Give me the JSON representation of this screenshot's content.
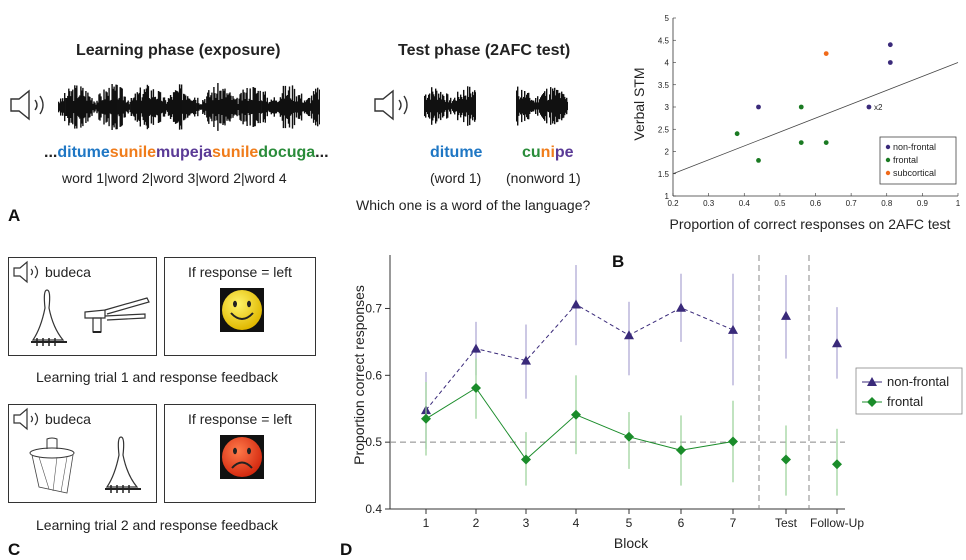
{
  "panelA": {
    "letter": "A",
    "learning_title": "Learning phase (exposure)",
    "test_title": "Test phase (2AFC test)",
    "stream": {
      "prefix": "...",
      "suffix": "...",
      "segments": [
        {
          "text": "ditume",
          "color": "#1f77c4"
        },
        {
          "text": "sunile",
          "color": "#f07c1a"
        },
        {
          "text": "mupeja",
          "color": "#5a3a96"
        },
        {
          "text": "sunile",
          "color": "#f07c1a"
        },
        {
          "text": "docuga",
          "color": "#2a8c3a"
        }
      ]
    },
    "words_line": "word 1|word 2|word 3|word 2|word 4",
    "test_word": {
      "text": "ditume",
      "color": "#1f77c4",
      "label": "(word 1)"
    },
    "test_nonword": {
      "label": "(nonword 1)",
      "segments": [
        {
          "text": "cu",
          "color": "#2a8c3a"
        },
        {
          "text": "ni",
          "color": "#f07c1a"
        },
        {
          "text": "pe",
          "color": "#5a3a96"
        }
      ]
    },
    "question": "Which one is a word of the language?"
  },
  "panelB": {
    "letter": "B",
    "ylabel": "Verbal STM",
    "xlabel": "Proportion of correct responses on 2AFC test",
    "annotation": "x2",
    "legend": [
      {
        "label": "non-frontal",
        "color": "#3a2a7a"
      },
      {
        "label": "frontal",
        "color": "#1a7a22"
      },
      {
        "label": "subcortical",
        "color": "#f06a1a"
      }
    ]
  },
  "panelC": {
    "letter": "C",
    "word": "budeca",
    "feedback_label": "If response = left",
    "trial1_caption": "Learning trial 1 and response feedback",
    "trial2_caption": "Learning trial 2 and response feedback"
  },
  "panelD": {
    "letter": "D",
    "ylabel": "Proportion correct responses",
    "xlabel": "Block",
    "legend": [
      {
        "label": "non-frontal",
        "color": "#3a2a7a"
      },
      {
        "label": "frontal",
        "color": "#1a8c2a"
      }
    ]
  },
  "chart_data": [
    {
      "type": "scatter",
      "ylabel": "Verbal STM",
      "xlabel": "Proportion of correct responses on 2AFC test",
      "xlim": [
        0.2,
        1
      ],
      "ylim": [
        1,
        5
      ],
      "xticks": [
        "0.2",
        "0.3",
        "0.4",
        "0.5",
        "0.6",
        "0.7",
        "0.8",
        "0.9",
        "1"
      ],
      "yticks": [
        "1",
        "1.5",
        "2",
        "2.5",
        "3",
        "3.5",
        "4",
        "4.5",
        "5"
      ],
      "series": [
        {
          "name": "non-frontal",
          "color": "#3a2a7a",
          "points": [
            [
              0.44,
              3.0
            ],
            [
              0.75,
              3.0
            ],
            [
              0.81,
              4.4
            ],
            [
              0.81,
              4.0
            ]
          ]
        },
        {
          "name": "frontal",
          "color": "#1a7a22",
          "points": [
            [
              0.38,
              2.4
            ],
            [
              0.44,
              1.8
            ],
            [
              0.56,
              3.0
            ],
            [
              0.56,
              2.2
            ],
            [
              0.63,
              2.2
            ]
          ]
        },
        {
          "name": "subcortical",
          "color": "#f06a1a",
          "points": [
            [
              0.63,
              4.2
            ]
          ]
        }
      ],
      "regression_line": [
        [
          0.2,
          1.5
        ],
        [
          1.0,
          4.0
        ]
      ],
      "legend_position": "bottom-right"
    },
    {
      "type": "line",
      "ylabel": "Proportion correct responses",
      "xlabel": "Block",
      "categories": [
        "1",
        "2",
        "3",
        "4",
        "5",
        "6",
        "7",
        "Test",
        "Follow-Up"
      ],
      "ylim": [
        0.4,
        0.78
      ],
      "yticks": [
        "0.4",
        "0.5",
        "0.6",
        "0.7"
      ],
      "chance_level": 0.5,
      "series": [
        {
          "name": "non-frontal",
          "marker": "triangle",
          "line": "dashed",
          "color": "#3a2a7a",
          "values": [
            0.548,
            0.64,
            0.622,
            0.706,
            0.66,
            0.701,
            0.668,
            0.689,
            0.648
          ],
          "error_low": [
            0.49,
            0.6,
            0.565,
            0.645,
            0.6,
            0.65,
            0.585,
            0.625,
            0.595
          ],
          "error_high": [
            0.605,
            0.68,
            0.676,
            0.765,
            0.71,
            0.752,
            0.752,
            0.75,
            0.702
          ]
        },
        {
          "name": "frontal",
          "marker": "diamond",
          "line": "solid",
          "color": "#1a8c2a",
          "values": [
            0.535,
            0.581,
            0.474,
            0.541,
            0.508,
            0.488,
            0.501,
            0.474,
            0.467
          ],
          "error_low": [
            0.48,
            0.535,
            0.435,
            0.482,
            0.46,
            0.435,
            0.44,
            0.42,
            0.42
          ],
          "error_high": [
            0.59,
            0.625,
            0.515,
            0.6,
            0.545,
            0.54,
            0.562,
            0.525,
            0.52
          ]
        }
      ],
      "legend_position": "right"
    }
  ]
}
